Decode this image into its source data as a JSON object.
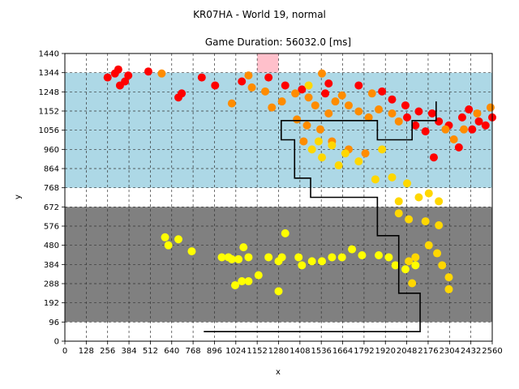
{
  "figure": {
    "suptitle": "KR07HA - World 19, normal"
  },
  "chart_data": {
    "type": "scatter",
    "title": "Game Duration: 56032.0 [ms]",
    "xlabel": "x",
    "ylabel": "y",
    "xlim": [
      0,
      2560
    ],
    "ylim": [
      0,
      1440
    ],
    "xticks": [
      0,
      128,
      256,
      384,
      512,
      640,
      768,
      896,
      1024,
      1152,
      1280,
      1408,
      1536,
      1664,
      1792,
      1920,
      2048,
      2176,
      2304,
      2432,
      2560
    ],
    "yticks": [
      0,
      96,
      192,
      288,
      384,
      480,
      576,
      672,
      768,
      864,
      960,
      1056,
      1152,
      1248,
      1344,
      1440
    ],
    "xtick_labels": [
      "0",
      "128",
      "256",
      "384",
      "512",
      "640",
      "768",
      "896",
      "1024",
      "1152",
      "1280",
      "1408",
      "1536",
      "1664",
      "1792",
      "1920",
      "2048",
      "2176",
      "2304",
      "2432",
      "2560"
    ],
    "ytick_labels": [
      "0",
      "96",
      "192",
      "288",
      "384",
      "480",
      "576",
      "672",
      "768",
      "864",
      "960",
      "1056",
      "1152",
      "1248",
      "1344",
      "1440"
    ],
    "grid": "dashed",
    "regions": [
      {
        "kind": "sky",
        "color": "#add8e6",
        "x": [
          0,
          2560
        ],
        "y": [
          768,
          1344
        ]
      },
      {
        "kind": "ground",
        "color": "#808080",
        "x": [
          0,
          2560
        ],
        "y": [
          96,
          672
        ]
      },
      {
        "kind": "goal",
        "color": "#ffc0cb",
        "x": [
          1152,
          1280
        ],
        "y": [
          1344,
          1440
        ]
      }
    ],
    "path": {
      "color": "#000000",
      "points": [
        [
          832,
          48
        ],
        [
          2128,
          48
        ],
        [
          2128,
          240
        ],
        [
          2000,
          240
        ],
        [
          2000,
          528
        ],
        [
          1872,
          528
        ],
        [
          1872,
          720
        ],
        [
          1472,
          720
        ],
        [
          1472,
          816
        ],
        [
          1376,
          816
        ],
        [
          1376,
          912
        ],
        [
          1376,
          1008
        ],
        [
          1296,
          1008
        ],
        [
          1296,
          1104
        ],
        [
          1872,
          1104
        ],
        [
          1872,
          1008
        ],
        [
          2080,
          1008
        ],
        [
          2080,
          1104
        ],
        [
          2224,
          1104
        ],
        [
          2224,
          1200
        ]
      ]
    },
    "series": [
      {
        "color": "#ff0000",
        "points": [
          [
            300,
            1340
          ],
          [
            320,
            1360
          ],
          [
            256,
            1320
          ],
          [
            380,
            1330
          ],
          [
            330,
            1280
          ],
          [
            360,
            1300
          ],
          [
            500,
            1350
          ],
          [
            700,
            1240
          ],
          [
            680,
            1220
          ],
          [
            820,
            1320
          ],
          [
            900,
            1280
          ],
          [
            1060,
            1300
          ],
          [
            1220,
            1320
          ],
          [
            1320,
            1280
          ],
          [
            1420,
            1260
          ],
          [
            1560,
            1240
          ],
          [
            1580,
            1290
          ],
          [
            1760,
            1280
          ],
          [
            1900,
            1250
          ],
          [
            1960,
            1210
          ],
          [
            2040,
            1180
          ],
          [
            2120,
            1150
          ],
          [
            2200,
            1140
          ],
          [
            2240,
            1100
          ],
          [
            2300,
            1080
          ],
          [
            2380,
            1120
          ],
          [
            2440,
            1060
          ],
          [
            2480,
            1100
          ],
          [
            2520,
            1080
          ],
          [
            2560,
            1120
          ],
          [
            2100,
            1080
          ],
          [
            2050,
            1120
          ],
          [
            2160,
            1050
          ],
          [
            2210,
            920
          ],
          [
            2360,
            970
          ],
          [
            2420,
            1160
          ]
        ]
      },
      {
        "color": "#ff8c00",
        "points": [
          [
            580,
            1340
          ],
          [
            1100,
            1330
          ],
          [
            1120,
            1270
          ],
          [
            1200,
            1250
          ],
          [
            1300,
            1200
          ],
          [
            1380,
            1240
          ],
          [
            1460,
            1220
          ],
          [
            1500,
            1180
          ],
          [
            1580,
            1140
          ],
          [
            1620,
            1200
          ],
          [
            1700,
            1180
          ],
          [
            1760,
            1150
          ],
          [
            1820,
            1120
          ],
          [
            1880,
            1160
          ],
          [
            1960,
            1140
          ],
          [
            2000,
            1100
          ],
          [
            1450,
            1080
          ],
          [
            1530,
            1060
          ],
          [
            1600,
            1000
          ],
          [
            1700,
            960
          ],
          [
            1800,
            940
          ],
          [
            1390,
            1110
          ],
          [
            1000,
            1190
          ],
          [
            1240,
            1170
          ],
          [
            1660,
            1230
          ],
          [
            1840,
            1240
          ],
          [
            2280,
            1060
          ],
          [
            2330,
            1010
          ],
          [
            2470,
            1140
          ],
          [
            2550,
            1170
          ],
          [
            2390,
            1060
          ],
          [
            1430,
            1000
          ],
          [
            1540,
            1340
          ]
        ]
      },
      {
        "color": "#ffd700",
        "points": [
          [
            1460,
            1280
          ],
          [
            1520,
            1000
          ],
          [
            1600,
            980
          ],
          [
            1680,
            940
          ],
          [
            1760,
            900
          ],
          [
            1900,
            960
          ],
          [
            1960,
            820
          ],
          [
            2050,
            790
          ],
          [
            2120,
            720
          ],
          [
            2180,
            740
          ],
          [
            2240,
            700
          ],
          [
            2000,
            640
          ],
          [
            2060,
            610
          ],
          [
            2160,
            600
          ],
          [
            2240,
            580
          ],
          [
            2180,
            480
          ],
          [
            2230,
            440
          ],
          [
            2260,
            380
          ],
          [
            2300,
            320
          ],
          [
            2300,
            260
          ],
          [
            2060,
            400
          ],
          [
            2080,
            290
          ],
          [
            2100,
            420
          ],
          [
            1480,
            960
          ],
          [
            1540,
            920
          ],
          [
            1640,
            880
          ],
          [
            1860,
            810
          ],
          [
            2000,
            700
          ]
        ]
      },
      {
        "color": "#ffff00",
        "points": [
          [
            600,
            520
          ],
          [
            620,
            480
          ],
          [
            680,
            510
          ],
          [
            760,
            450
          ],
          [
            940,
            420
          ],
          [
            1000,
            410
          ],
          [
            1040,
            410
          ],
          [
            1070,
            470
          ],
          [
            1100,
            420
          ],
          [
            1100,
            300
          ],
          [
            1160,
            330
          ],
          [
            1220,
            420
          ],
          [
            1280,
            400
          ],
          [
            1300,
            420
          ],
          [
            1320,
            540
          ],
          [
            1400,
            420
          ],
          [
            1420,
            380
          ],
          [
            1480,
            400
          ],
          [
            1540,
            400
          ],
          [
            1600,
            420
          ],
          [
            1660,
            420
          ],
          [
            1720,
            460
          ],
          [
            1780,
            430
          ],
          [
            1880,
            430
          ],
          [
            1940,
            420
          ],
          [
            1980,
            380
          ],
          [
            2040,
            360
          ],
          [
            2100,
            380
          ],
          [
            1280,
            250
          ],
          [
            1020,
            280
          ],
          [
            1060,
            300
          ],
          [
            980,
            420
          ]
        ]
      }
    ]
  }
}
